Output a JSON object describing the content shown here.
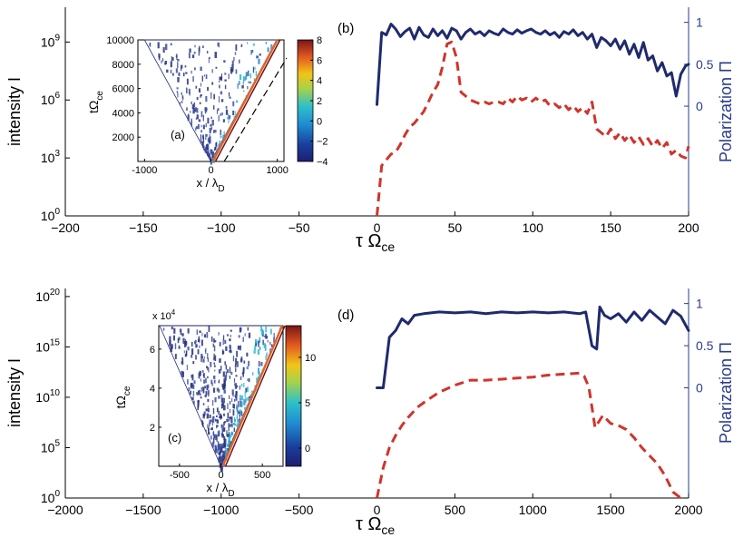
{
  "chart_data": [
    {
      "panel": "(b)",
      "type": "line",
      "xlabel_main": "τ Ω",
      "xlabel_sub": "ce",
      "ylabel_left": "intensity I",
      "ylabel_right": "Polarization  Π",
      "xlim": [
        -200,
        200
      ],
      "xticks": [
        -200,
        -150,
        -100,
        -50,
        0,
        50,
        100,
        150,
        200
      ],
      "ylim_log": [
        0,
        10.8
      ],
      "yticks_log": [
        {
          "exp": "0",
          "val": 0
        },
        {
          "exp": "3",
          "val": 3
        },
        {
          "exp": "6",
          "val": 6
        },
        {
          "exp": "9",
          "val": 9
        }
      ],
      "right_ylim": [
        -1.2,
        1.05
      ],
      "right_yticks": [
        {
          "label": "0",
          "val": 0
        },
        {
          "label": "0.5",
          "val": 0.5
        },
        {
          "label": "1",
          "val": 1
        }
      ],
      "series": [
        {
          "name": "Polarization Π",
          "axis": "right",
          "color": "#1f2a6e",
          "style": "solid",
          "x": [
            0,
            3,
            6,
            9,
            12,
            15,
            18,
            21,
            24,
            27,
            30,
            33,
            36,
            39,
            42,
            45,
            48,
            51,
            54,
            57,
            60,
            63,
            66,
            69,
            72,
            75,
            78,
            81,
            84,
            87,
            90,
            93,
            96,
            99,
            102,
            105,
            108,
            111,
            114,
            117,
            120,
            123,
            126,
            129,
            132,
            135,
            138,
            141,
            144,
            147,
            150,
            153,
            156,
            159,
            162,
            165,
            168,
            171,
            174,
            177,
            180,
            183,
            186,
            189,
            192,
            195,
            198,
            200
          ],
          "values": [
            0.02,
            0.88,
            0.85,
            0.98,
            0.92,
            0.83,
            0.89,
            0.93,
            0.8,
            0.94,
            0.85,
            0.82,
            0.92,
            0.84,
            0.9,
            0.81,
            0.93,
            0.9,
            0.8,
            0.88,
            0.92,
            0.86,
            0.89,
            0.84,
            0.9,
            0.87,
            0.85,
            0.92,
            0.88,
            0.86,
            0.91,
            0.87,
            0.9,
            0.92,
            0.88,
            0.86,
            0.9,
            0.85,
            0.88,
            0.82,
            0.89,
            0.86,
            0.91,
            0.84,
            0.88,
            0.8,
            0.86,
            0.7,
            0.82,
            0.78,
            0.72,
            0.8,
            0.68,
            0.78,
            0.62,
            0.74,
            0.58,
            0.76,
            0.55,
            0.6,
            0.42,
            0.52,
            0.36,
            0.4,
            0.12,
            0.38,
            0.48,
            0.5
          ]
        },
        {
          "name": "intensity I",
          "axis": "left",
          "color": "#d0342c",
          "style": "dashed",
          "x": [
            0,
            3,
            6,
            9,
            12,
            15,
            18,
            21,
            24,
            27,
            30,
            33,
            36,
            39,
            42,
            45,
            48,
            51,
            54,
            57,
            60,
            63,
            66,
            69,
            72,
            75,
            78,
            81,
            84,
            87,
            90,
            93,
            96,
            99,
            102,
            105,
            108,
            111,
            114,
            117,
            120,
            123,
            126,
            129,
            132,
            135,
            138,
            141,
            144,
            147,
            150,
            153,
            156,
            159,
            162,
            165,
            168,
            171,
            174,
            177,
            180,
            183,
            186,
            189,
            192,
            195,
            198,
            200
          ],
          "values": [
            0.0,
            2.6,
            2.9,
            3.2,
            3.3,
            3.7,
            4.2,
            4.6,
            4.8,
            5.1,
            5.4,
            5.9,
            6.4,
            6.8,
            7.7,
            8.9,
            9.0,
            8.2,
            6.4,
            6.2,
            6.0,
            5.9,
            5.8,
            5.9,
            5.8,
            5.9,
            5.9,
            5.8,
            6.1,
            5.9,
            6.2,
            6.0,
            6.1,
            5.9,
            6.1,
            5.9,
            6.0,
            5.7,
            5.8,
            5.6,
            5.8,
            5.5,
            5.7,
            5.4,
            5.6,
            5.3,
            5.9,
            4.5,
            4.3,
            4.1,
            4.5,
            4.0,
            4.3,
            3.9,
            4.2,
            3.8,
            4.1,
            3.7,
            4.0,
            3.6,
            3.9,
            3.5,
            3.8,
            3.2,
            3.4,
            3.1,
            3.0,
            3.6
          ]
        }
      ]
    },
    {
      "panel": "(d)",
      "type": "line",
      "xlabel_main": "τ Ω",
      "xlabel_sub": "ce",
      "ylabel_left": "intensity I",
      "ylabel_right": "Polarization  Π",
      "xlim": [
        -2000,
        2000
      ],
      "xticks": [
        -2000,
        -1500,
        -1000,
        -500,
        0,
        500,
        1000,
        1500,
        2000
      ],
      "ylim_log": [
        0,
        20.8
      ],
      "yticks_log": [
        {
          "exp": "0",
          "val": 0
        },
        {
          "exp": "5",
          "val": 5
        },
        {
          "exp": "10",
          "val": 10
        },
        {
          "exp": "15",
          "val": 15
        },
        {
          "exp": "20",
          "val": 20
        }
      ],
      "right_ylim": [
        -1.2,
        1.05
      ],
      "right_yticks": [
        {
          "label": "0",
          "val": 0
        },
        {
          "label": "0.5",
          "val": 0.5
        },
        {
          "label": "1",
          "val": 1
        }
      ],
      "series": [
        {
          "name": "Polarization Π",
          "axis": "right",
          "color": "#1f2a6e",
          "style": "solid",
          "x": [
            0,
            40,
            80,
            120,
            160,
            200,
            240,
            300,
            400,
            500,
            600,
            700,
            800,
            900,
            1000,
            1100,
            1200,
            1300,
            1340,
            1380,
            1410,
            1430,
            1460,
            1500,
            1550,
            1600,
            1650,
            1700,
            1750,
            1800,
            1850,
            1900,
            1950,
            2000
          ],
          "values": [
            0.0,
            0.0,
            0.6,
            0.68,
            0.82,
            0.76,
            0.86,
            0.88,
            0.9,
            0.89,
            0.9,
            0.88,
            0.9,
            0.89,
            0.9,
            0.89,
            0.9,
            0.88,
            0.9,
            0.5,
            0.46,
            0.96,
            0.86,
            0.82,
            0.88,
            0.78,
            0.9,
            0.8,
            0.92,
            0.84,
            0.76,
            0.92,
            0.85,
            0.68
          ]
        },
        {
          "name": "intensity I",
          "axis": "left",
          "color": "#d0342c",
          "style": "dashed",
          "x": [
            0,
            40,
            80,
            120,
            160,
            200,
            260,
            320,
            400,
            500,
            600,
            700,
            800,
            900,
            1000,
            1100,
            1200,
            1300,
            1330,
            1360,
            1400,
            1450,
            1500,
            1550,
            1600,
            1650,
            1700,
            1750,
            1800,
            1850,
            1900,
            1950
          ],
          "values": [
            0.0,
            3.0,
            5.0,
            6.2,
            7.2,
            8.0,
            9.0,
            9.7,
            10.5,
            11.2,
            11.7,
            11.7,
            11.8,
            11.9,
            12.0,
            12.2,
            12.3,
            12.4,
            12.1,
            11.0,
            7.0,
            8.2,
            7.4,
            7.2,
            6.8,
            6.0,
            5.0,
            4.2,
            3.4,
            2.2,
            0.6,
            0.0
          ]
        }
      ]
    }
  ],
  "insets": [
    {
      "panel_label": "(a)",
      "xlabel": "x / λ",
      "xlabel_sub": "D",
      "ylabel": "tΩ",
      "ylabel_sub": "ce",
      "ylabel_multiplier": "",
      "xlim": [
        -1100,
        1100
      ],
      "xticks": [
        {
          "label": "-1000",
          "val": -1000
        },
        {
          "label": "0",
          "val": 0
        },
        {
          "label": "1000",
          "val": 1000
        }
      ],
      "ylim": [
        0,
        10000
      ],
      "yticks": [
        {
          "label": "2000",
          "val": 2000
        },
        {
          "label": "4000",
          "val": 4000
        },
        {
          "label": "6000",
          "val": 6000
        },
        {
          "label": "8000",
          "val": 8000
        },
        {
          "label": "10000",
          "val": 10000
        }
      ],
      "cone_half_width": 1000,
      "dashed_line": [
        [
          200,
          0
        ],
        [
          1140,
          8500
        ]
      ],
      "colorbar_range": [
        -4,
        8
      ],
      "colorbar_ticks": [
        {
          "label": "8",
          "val": 8
        },
        {
          "label": "6",
          "val": 6
        },
        {
          "label": "4",
          "val": 4
        },
        {
          "label": "2",
          "val": 2
        },
        {
          "label": "0",
          "val": 0
        },
        {
          "label": "−2",
          "val": -2
        },
        {
          "label": "−4",
          "val": -4
        }
      ]
    },
    {
      "panel_label": "(c)",
      "xlabel": "x / λ",
      "xlabel_sub": "D",
      "ylabel": "tΩ",
      "ylabel_sub": "ce",
      "ylabel_multiplier": "x 10",
      "ylabel_multiplier_exp": "4",
      "xlim": [
        -750,
        750
      ],
      "xticks": [
        {
          "label": "-500",
          "val": -500
        },
        {
          "label": "0",
          "val": 0
        },
        {
          "label": "500",
          "val": 500
        }
      ],
      "ylim": [
        0,
        7.2
      ],
      "yticks": [
        {
          "label": "2",
          "val": 2
        },
        {
          "label": "4",
          "val": 4
        },
        {
          "label": "6",
          "val": 6
        }
      ],
      "cone_half_width": 740,
      "dashed_line": null,
      "colorbar_range": [
        -2,
        13.5
      ],
      "colorbar_ticks": [
        {
          "label": "10",
          "val": 10
        },
        {
          "label": "5",
          "val": 5
        },
        {
          "label": "0",
          "val": 0
        }
      ]
    }
  ],
  "panel_labels": {
    "b": "(b)",
    "d": "(d)"
  }
}
